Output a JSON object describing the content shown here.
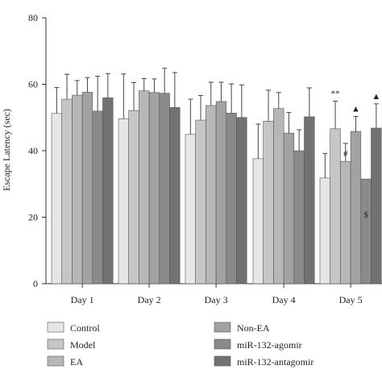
{
  "chart_data": {
    "type": "bar",
    "ylabel": "Escape Latency (sec)",
    "ylim": [
      0,
      80
    ],
    "yticks": [
      "0",
      "20",
      "40",
      "60",
      "80"
    ],
    "categories": [
      "Day 1",
      "Day 2",
      "Day 3",
      "Day 4",
      "Day 5"
    ],
    "series": [
      {
        "name": "Control",
        "color": "#e6e6e6",
        "values": [
          51.2,
          49.6,
          44.9,
          37.6,
          31.8
        ],
        "errors": [
          7.8,
          13.5,
          10.6,
          10.4,
          7.4
        ]
      },
      {
        "name": "Model",
        "color": "#c6c6c6",
        "values": [
          55.5,
          52.1,
          49.2,
          48.9,
          46.6
        ],
        "errors": [
          7.5,
          8.4,
          7.4,
          9.3,
          8.3
        ]
      },
      {
        "name": "EA",
        "color": "#b7b7b7",
        "values": [
          56.7,
          58.0,
          53.6,
          52.7,
          36.8
        ],
        "errors": [
          4.4,
          3.7,
          7.0,
          4.8,
          5.4
        ]
      },
      {
        "name": "Non-EA",
        "color": "#a2a2a2",
        "values": [
          57.6,
          57.5,
          54.8,
          45.3,
          45.8
        ],
        "errors": [
          4.4,
          4.1,
          5.8,
          6.2,
          4.5
        ]
      },
      {
        "name": "miR-132-agomir",
        "color": "#8a8a8a",
        "values": [
          51.9,
          57.3,
          51.3,
          40.0,
          31.5
        ],
        "errors": [
          10.5,
          7.5,
          8.8,
          6.3,
          0.0
        ]
      },
      {
        "name": "miR-132-antagomir",
        "color": "#727272",
        "values": [
          55.9,
          53.0,
          50.0,
          50.2,
          46.8
        ],
        "errors": [
          7.3,
          10.5,
          9.8,
          8.7,
          7.3
        ]
      }
    ],
    "annotations": [
      {
        "text": "**",
        "category": "Day 5",
        "series": "Model"
      },
      {
        "text": "#",
        "category": "Day 5",
        "series": "EA"
      },
      {
        "text": "▲",
        "category": "Day 5",
        "series": "Non-EA"
      },
      {
        "text": "$",
        "category": "Day 5",
        "series": "miR-132-agomir"
      },
      {
        "text": "▲",
        "category": "Day 5",
        "series": "miR-132-antagomir"
      }
    ],
    "legend_position": "bottom",
    "grid": false
  }
}
